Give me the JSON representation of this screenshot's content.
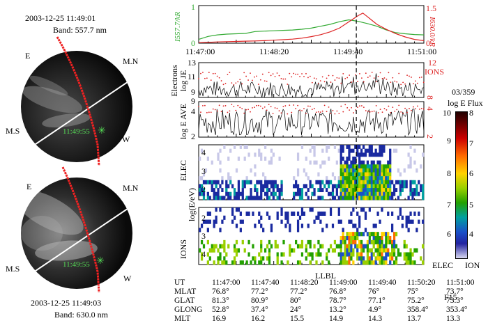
{
  "left": {
    "top_image": {
      "time": "2003-12-25 11:49:01",
      "band": "Band: 557.7 nm",
      "marker_label": "11:49:55",
      "dir_e": "E",
      "dir_w": "W",
      "dir_mn": "M.N",
      "dir_ms": "M.S"
    },
    "bottom_image": {
      "time": "2003-12-25 11:49:03",
      "band": "Band: 630.0 nm",
      "marker_label": "11:49:55",
      "dir_e": "E",
      "dir_w": "W",
      "dir_mn": "M.N",
      "dir_ms": "M.S"
    }
  },
  "colors": {
    "green": "#33aa33",
    "red": "#dd2222",
    "blue_data": "#1a2aa0"
  },
  "chart_data": [
    {
      "type": "line",
      "panel": "intensity",
      "ylabel_left": "I557.7/kR",
      "ylabel_right": "I630.0/kR",
      "left_ticks": [
        "0",
        "1"
      ],
      "right_ticks": [
        "0",
        "1.5"
      ],
      "xlabels": [
        "11:47:00",
        "11:48:20",
        "11:49:40",
        "11:51:00"
      ],
      "x_range": [
        0,
        240
      ],
      "series": [
        {
          "name": "557.7 nm",
          "color": "green",
          "axis": "left",
          "ylim": [
            0,
            1
          ],
          "x": [
            0,
            10,
            20,
            30,
            40,
            50,
            60,
            70,
            80,
            90,
            100,
            110,
            120,
            130,
            140,
            150,
            160,
            170,
            180,
            190,
            200,
            210,
            220,
            230,
            240
          ],
          "y": [
            0.1,
            0.18,
            0.22,
            0.24,
            0.25,
            0.26,
            0.31,
            0.32,
            0.33,
            0.34,
            0.35,
            0.37,
            0.4,
            0.45,
            0.5,
            0.57,
            0.62,
            0.58,
            0.52,
            0.45,
            0.35,
            0.28,
            0.25,
            0.23,
            0.22
          ]
        },
        {
          "name": "630.0 nm",
          "color": "red",
          "axis": "right",
          "ylim": [
            0,
            1.5
          ],
          "x": [
            0,
            10,
            20,
            30,
            40,
            50,
            60,
            70,
            80,
            90,
            100,
            110,
            120,
            130,
            140,
            150,
            160,
            170,
            175,
            180,
            185,
            190,
            200,
            210,
            220,
            230,
            240
          ],
          "y": [
            0.02,
            0.03,
            0.05,
            0.06,
            0.07,
            0.08,
            0.09,
            0.1,
            0.12,
            0.14,
            0.16,
            0.2,
            0.26,
            0.34,
            0.45,
            0.6,
            0.85,
            1.1,
            1.2,
            1.05,
            0.9,
            0.75,
            0.55,
            0.38,
            0.25,
            0.15,
            0.1
          ]
        }
      ]
    },
    {
      "type": "line",
      "panel": "energy_flux",
      "ylabel": "Electrons log JE",
      "yticks_left": [
        "9",
        "11",
        "13"
      ],
      "ylim_left": [
        9,
        13
      ],
      "right_label": "IONS",
      "yticks_right": [
        "8",
        "12"
      ],
      "ylim_right": [
        6,
        12
      ],
      "series": [
        {
          "name": "electrons log JE",
          "color": "black"
        },
        {
          "name": "ions log JE",
          "color": "red",
          "style": "dots"
        }
      ]
    },
    {
      "type": "line",
      "panel": "average_energy",
      "ylabel": "log E AVE",
      "yticks_left": [
        "2",
        "4",
        "9"
      ],
      "ylim_left": [
        2,
        9
      ],
      "yticks_right": [
        "2",
        "4"
      ],
      "series": [
        {
          "name": "electron average energy",
          "color": "black"
        },
        {
          "name": "ion average energy",
          "color": "red",
          "style": "dots"
        }
      ]
    },
    {
      "type": "heatmap",
      "panel": "ELEC",
      "label": "ELEC",
      "yticks": [
        "2",
        "3",
        "4"
      ]
    },
    {
      "type": "heatmap",
      "panel": "IONS",
      "label": "IONS",
      "yticks": [
        "2",
        "3",
        "4"
      ]
    }
  ],
  "shared_ylabel": "log(E/eV)",
  "colorbar": {
    "title_line1": "03/359",
    "title_line2": "log E Flux",
    "ticks": [
      "10",
      "9",
      "8",
      "7",
      "6",
      "5",
      "4"
    ],
    "right_tick": "8",
    "bottom_left": "ELEC",
    "bottom_right": "ION"
  },
  "annotations": {
    "boundary": "LLBL",
    "event_time_x": 168,
    "satellite": "F15"
  },
  "ephemeris": {
    "rows": [
      {
        "label": "UT",
        "values": [
          "11:47:00",
          "11:47:40",
          "11:48:20",
          "11:49:00",
          "11:49:40",
          "11:50:20",
          "11:51:00"
        ]
      },
      {
        "label": "MLAT",
        "values": [
          "76.8°",
          "77.2°",
          "77.2°",
          "76.8°",
          "76°",
          "75°",
          "73.7°"
        ]
      },
      {
        "label": "GLAT",
        "values": [
          "81.3°",
          "80.9°",
          "80°",
          "78.7°",
          "77.1°",
          "75.2°",
          "73.3°"
        ]
      },
      {
        "label": "GLONG",
        "values": [
          "52.8°",
          "37.4°",
          "24°",
          "13.2°",
          "4.9°",
          "358.4°",
          "353.4°"
        ]
      },
      {
        "label": "MLT",
        "values": [
          "16.9",
          "16.2",
          "15.5",
          "14.9",
          "14.3",
          "13.7",
          "13.3"
        ]
      }
    ]
  }
}
